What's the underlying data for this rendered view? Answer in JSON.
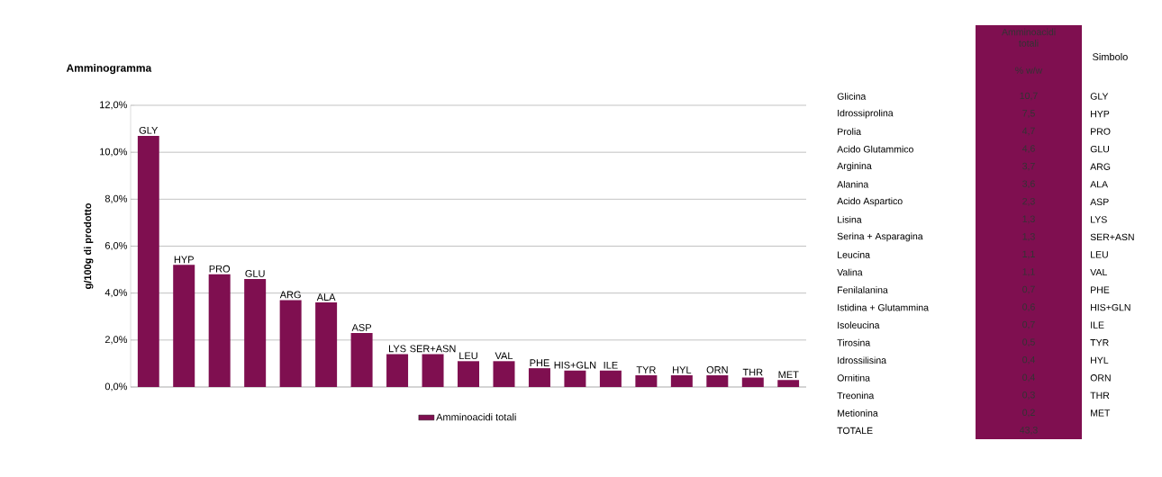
{
  "chart_data": [
    {
      "type": "bar",
      "title": "Amminogramma",
      "ylabel": "g/100g di prodotto",
      "categories": [
        "GLY",
        "HYP",
        "PRO",
        "GLU",
        "ARG",
        "ALA",
        "ASP",
        "LYS",
        "SER+ASN",
        "LEU",
        "VAL",
        "PHE",
        "HIS+GLN",
        "ILE",
        "TYR",
        "HYL",
        "ORN",
        "THR",
        "MET"
      ],
      "series": [
        {
          "name": "Amminoacidi totali",
          "color": "#7f0f50",
          "values": [
            10.7,
            5.2,
            4.8,
            4.6,
            3.7,
            3.6,
            2.3,
            1.4,
            1.4,
            1.1,
            1.1,
            0.8,
            0.7,
            0.7,
            0.5,
            0.5,
            0.5,
            0.4,
            0.3
          ]
        }
      ],
      "ylim": [
        0,
        12
      ],
      "yticks": [
        {
          "value": 0,
          "label": "0,0%"
        },
        {
          "value": 2,
          "label": "2,0%"
        },
        {
          "value": 4,
          "label": "4,0%"
        },
        {
          "value": 6,
          "label": "6,0%"
        },
        {
          "value": 8,
          "label": "8,0%"
        },
        {
          "value": 10,
          "label": "10,0%"
        },
        {
          "value": 12,
          "label": "12,0%"
        }
      ],
      "grid": "y",
      "legend": "bottom"
    },
    {
      "type": "other",
      "title": "Amminoacidi totali",
      "subtitle": "% w/w",
      "color": "#7f0f50",
      "categories": [
        "Glicina",
        "Idrossiprolina",
        "Prolia",
        "Acido Glutammico",
        "Arginina",
        "Alanina",
        "Acido Aspartico",
        "Lisina",
        "Serina + Asparagina",
        "Leucina",
        "Valina",
        "Fenilalanina",
        "Istidina + Glutammina",
        "Isoleucina",
        "Tirosina",
        "Idrossilisina",
        "Ornitina",
        "Treonina",
        "Metionina",
        "TOTALE"
      ],
      "value_labels": [
        "10,7",
        "7,5",
        "4,7",
        "4,6",
        "3,7",
        "3,6",
        "2,3",
        "1,3",
        "1,3",
        "1,1",
        "1,1",
        "0,7",
        "0,6",
        "0,7",
        "0,5",
        "0,4",
        "0,4",
        "0,3",
        "0,2",
        "43,3"
      ],
      "annotations": [
        "Simbolo",
        "GLY",
        "HYP",
        "PRO",
        "GLU",
        "ARG",
        "ALA",
        "ASP",
        "LYS",
        "SER+ASN",
        "LEU",
        "VAL",
        "PHE",
        "HIS+GLN",
        "ILE",
        "TYR",
        "HYL",
        "ORN",
        "THR",
        "MET"
      ]
    }
  ]
}
